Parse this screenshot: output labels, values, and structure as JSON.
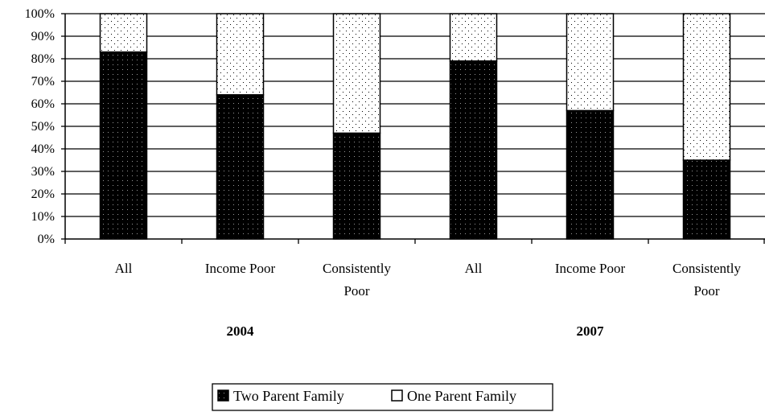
{
  "chart_data": {
    "type": "bar",
    "stacked": true,
    "percent_stacked": true,
    "categories": [
      "All",
      "Income Poor",
      "Consistently Poor",
      "All",
      "Income Poor",
      "Consistently Poor"
    ],
    "category_lines": [
      [
        "All"
      ],
      [
        "Income Poor"
      ],
      [
        "Consistently",
        "Poor"
      ],
      [
        "All"
      ],
      [
        "Income Poor"
      ],
      [
        "Consistently",
        "Poor"
      ]
    ],
    "groups": [
      {
        "label": "2004",
        "categories": [
          0,
          1,
          2
        ]
      },
      {
        "label": "2007",
        "categories": [
          3,
          4,
          5
        ]
      }
    ],
    "series": [
      {
        "name": "Two Parent Family",
        "values": [
          83,
          64,
          47,
          79,
          57,
          35
        ],
        "color": "#000000",
        "pattern": "dark-dots"
      },
      {
        "name": "One Parent Family",
        "values": [
          17,
          36,
          53,
          21,
          43,
          65
        ],
        "color": "#ffffff",
        "pattern": "light-dots"
      }
    ],
    "y_ticks": [
      "0%",
      "10%",
      "20%",
      "30%",
      "40%",
      "50%",
      "60%",
      "70%",
      "80%",
      "90%",
      "100%"
    ],
    "ylim": [
      0,
      100
    ],
    "grid": true,
    "legend_position": "bottom"
  }
}
